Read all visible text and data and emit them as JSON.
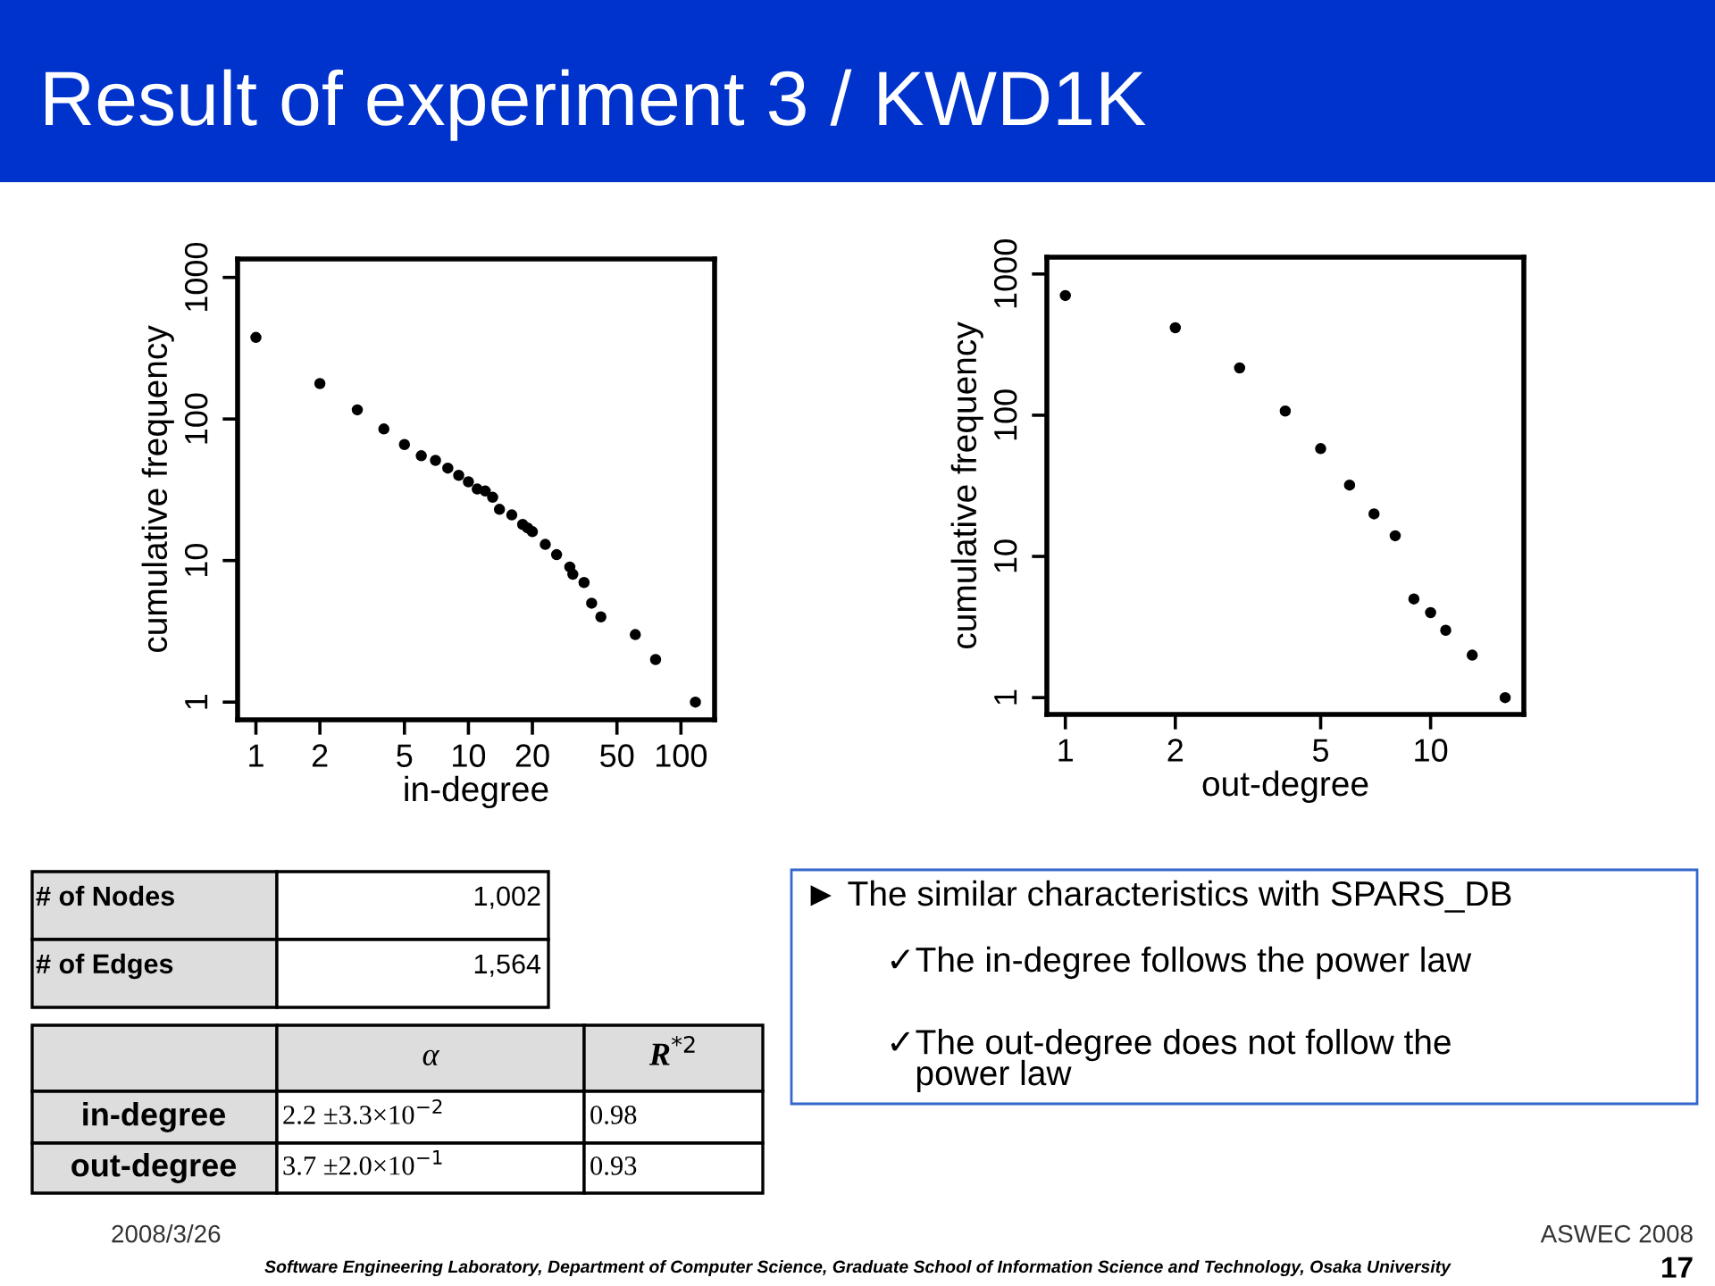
{
  "chart_data": [
    {
      "type": "scatter",
      "xlabel": "in-degree",
      "ylabel": "cumulative frequency",
      "log": "xy",
      "marker": "circle",
      "xlim": [
        0.82,
        144
      ],
      "ylim": [
        0.75,
        1350
      ],
      "xticks": [
        1,
        2,
        5,
        10,
        20,
        50,
        100
      ],
      "yticks": [
        1,
        10,
        100,
        1000
      ],
      "series": [
        {
          "color": "#000000",
          "x": [
            1,
            2,
            3,
            4,
            5,
            6,
            7,
            8,
            9,
            10,
            11,
            12,
            13,
            14,
            16,
            18,
            19,
            20,
            23,
            26,
            30,
            31,
            35,
            38,
            42,
            61,
            76,
            117
          ],
          "values": [
            377,
            178,
            116,
            85,
            66,
            55,
            51,
            45,
            40,
            36,
            32,
            31,
            28,
            23,
            21,
            18,
            17,
            16,
            13,
            11,
            9,
            8,
            7,
            5,
            4,
            3,
            2,
            1
          ]
        }
      ]
    },
    {
      "type": "scatter",
      "xlabel": "out-degree",
      "ylabel": "cumulative frequency",
      "log": "xy",
      "marker": "circle",
      "xlim": [
        0.89,
        18
      ],
      "ylim": [
        0.76,
        1315
      ],
      "xticks": [
        1,
        2,
        5,
        10
      ],
      "yticks": [
        1,
        10,
        100,
        1000
      ],
      "series": [
        {
          "color": "#000000",
          "x": [
            1,
            2,
            3,
            4,
            5,
            6,
            7,
            8,
            9,
            10,
            11,
            13,
            16
          ],
          "values": [
            704,
            416,
            216,
            107,
            58,
            32,
            20,
            14,
            5,
            4,
            3,
            2,
            1
          ]
        }
      ]
    },
    {
      "type": "other",
      "title": "Result of experiment 3 / KWD1K",
      "annotations": [
        "# of Nodes",
        "1,002",
        "# of Edges",
        "1,564",
        "α",
        "R$^{*2}$",
        "in-degree",
        "2.2 ±3.3×10$^{−2}$",
        "0.98",
        "out-degree",
        "3.7 ±2.0×10$^{−1}$",
        "0.93",
        "► The similar characteristics with SPARS_DB",
        "✓The in-degree follows the power law",
        "✓The out-degree does not follow the\n   power law",
        "2008/3/26",
        "ASWEC 2008",
        "17",
        "Software Engineering Laboratory, Department of Computer Science, Graduate School of Information Science and Technology, Osaka University"
      ]
    }
  ]
}
